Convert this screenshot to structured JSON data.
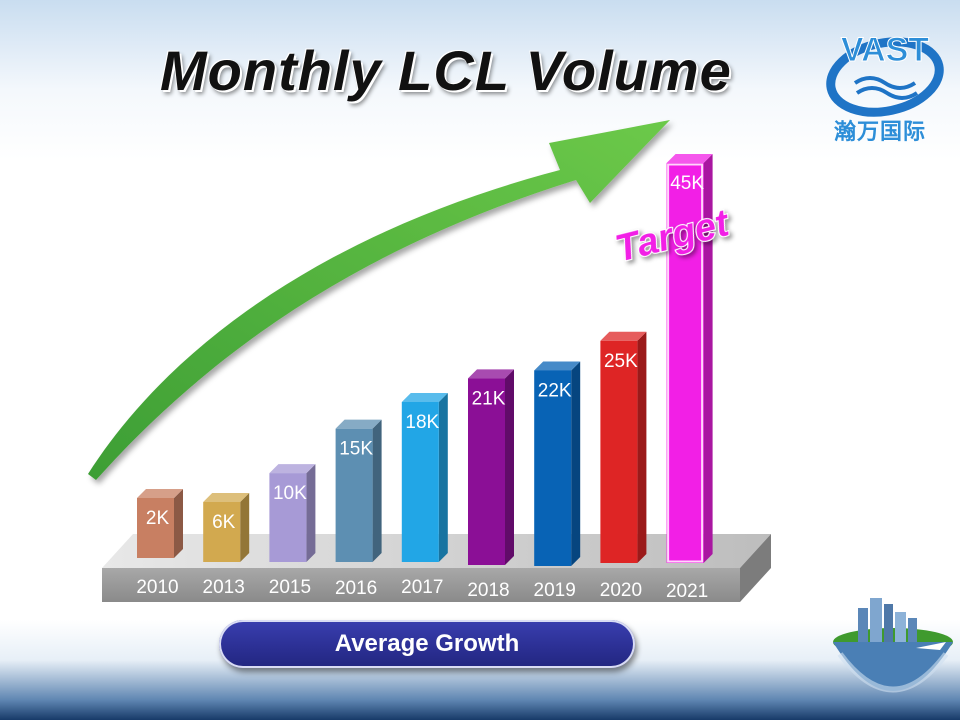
{
  "slide": {
    "title": "Monthly LCL Volume",
    "subtitle_button": "Average Growth",
    "logo": {
      "brand": "VAST",
      "chinese_name": "瀚万国际",
      "icon": "vast-logo-icon"
    },
    "decoration": {
      "icon": "globe-city-icon"
    }
  },
  "chart_data": {
    "type": "bar",
    "title": "Monthly LCL Volume",
    "categories": [
      "2010",
      "2013",
      "2015",
      "2016",
      "2017",
      "2018",
      "2019",
      "2020",
      "2021"
    ],
    "values": [
      2000,
      6000,
      10000,
      15000,
      18000,
      21000,
      22000,
      25000,
      45000
    ],
    "value_labels": [
      "2K",
      "6K",
      "10K",
      "15K",
      "18K",
      "21K",
      "22K",
      "25K",
      "45K"
    ],
    "bar_colors": [
      "#c87f62",
      "#d2a94f",
      "#a79ad6",
      "#5d8fb2",
      "#22a6e6",
      "#8b0f96",
      "#0863b5",
      "#de2525",
      "#f21fe6"
    ],
    "annotation": "Target",
    "trend_arrow": true,
    "arrow_color": "#4cae3a",
    "grid": false,
    "legend": "none",
    "ylim": [
      0,
      45000
    ],
    "xlabel": "",
    "ylabel": ""
  }
}
